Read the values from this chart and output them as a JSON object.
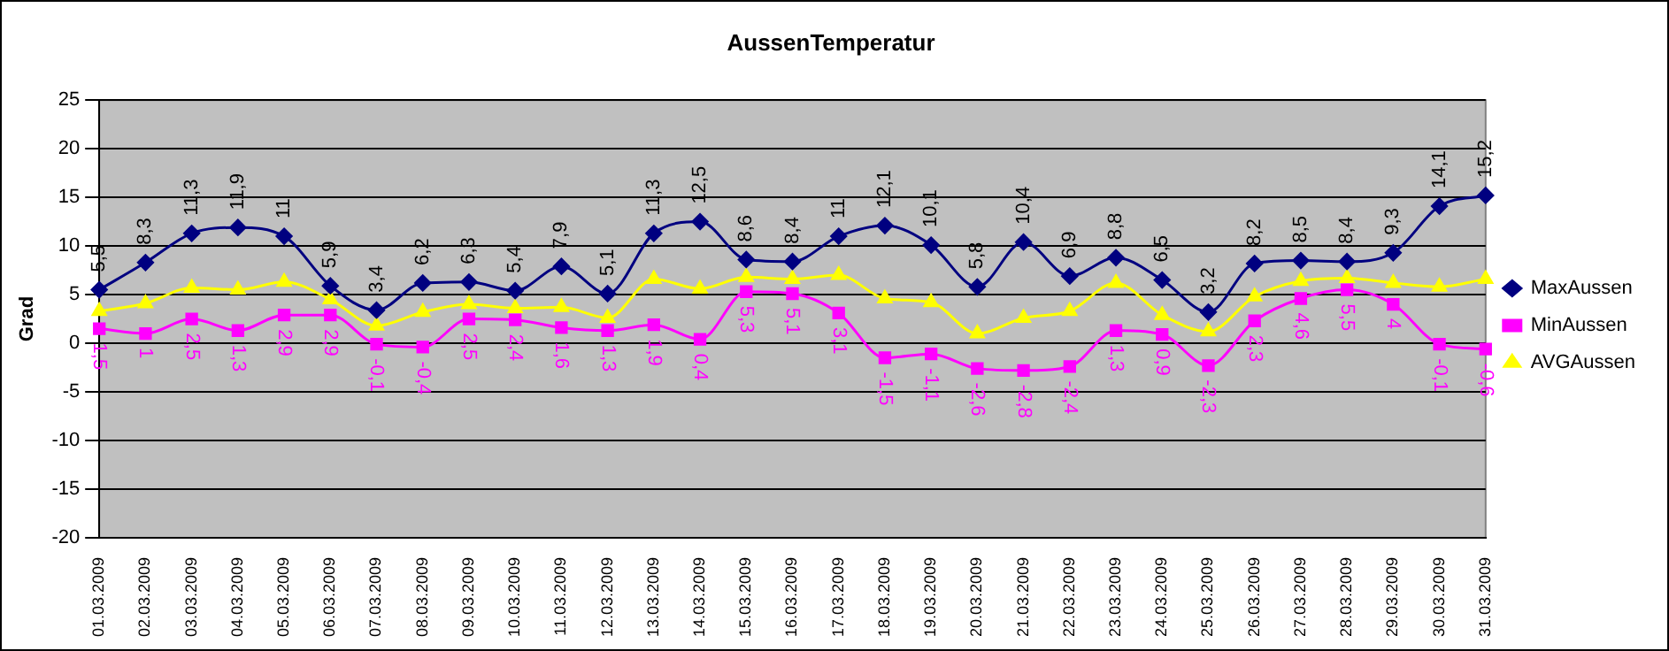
{
  "chart_data": {
    "type": "line",
    "title": "AussenTemperatur",
    "ylabel": "Grad",
    "categories": [
      "01.03.2009",
      "02.03.2009",
      "03.03.2009",
      "04.03.2009",
      "05.03.2009",
      "06.03.2009",
      "07.03.2009",
      "08.03.2009",
      "09.03.2009",
      "10.03.2009",
      "11.03.2009",
      "12.03.2009",
      "13.03.2009",
      "14.03.2009",
      "15.03.2009",
      "16.03.2009",
      "17.03.2009",
      "18.03.2009",
      "19.03.2009",
      "20.03.2009",
      "21.03.2009",
      "22.03.2009",
      "23.03.2009",
      "24.03.2009",
      "25.03.2009",
      "26.03.2009",
      "27.03.2009",
      "28.03.2009",
      "29.03.2009",
      "30.03.2009",
      "31.03.2009"
    ],
    "series": [
      {
        "name": "MaxAussen",
        "color": "#000080",
        "marker": "diamond",
        "values": [
          5.5,
          8.3,
          11.3,
          11.9,
          11,
          5.9,
          3.4,
          6.2,
          6.3,
          5.4,
          7.9,
          5.1,
          11.3,
          12.5,
          8.6,
          8.4,
          11,
          12.1,
          10.1,
          5.8,
          10.4,
          6.9,
          8.8,
          6.5,
          3.2,
          8.2,
          8.5,
          8.4,
          9.3,
          14.1,
          15.2
        ],
        "value_labels": [
          "5,5",
          "8,3",
          "11,3",
          "11,9",
          "11",
          "5,9",
          "3,4",
          "6,2",
          "6,3",
          "5,4",
          "7,9",
          "5,1",
          "11,3",
          "12,5",
          "8,6",
          "8,4",
          "11",
          "12,1",
          "10,1",
          "5,8",
          "10,4",
          "6,9",
          "8,8",
          "6,5",
          "3,2",
          "8,2",
          "8,5",
          "8,4",
          "9,3",
          "14,1",
          "15,2"
        ]
      },
      {
        "name": "MinAussen",
        "color": "#ff00ff",
        "marker": "square",
        "values": [
          1.5,
          1,
          2.5,
          1.3,
          2.9,
          2.9,
          -0.1,
          -0.4,
          2.5,
          2.4,
          1.6,
          1.3,
          1.9,
          0.4,
          5.3,
          5.1,
          3.1,
          -1.5,
          -1.1,
          -2.6,
          -2.8,
          -2.4,
          1.3,
          0.9,
          -2.3,
          2.3,
          4.6,
          5.5,
          4,
          -0.1,
          -0.6
        ],
        "value_labels": [
          "1,5",
          "1",
          "2,5",
          "1,3",
          "2,9",
          "2,9",
          "-0,1",
          "-0,4",
          "2,5",
          "2,4",
          "1,6",
          "1,3",
          "1,9",
          "0,4",
          "5,3",
          "5,1",
          "3,1",
          "-1,5",
          "-1,1",
          "-2,6",
          "-2,8",
          "-2,4",
          "1,3",
          "0,9",
          "-2,3",
          "2,3",
          "4,6",
          "5,5",
          "4",
          "-0,1",
          "-0,6"
        ]
      },
      {
        "name": "AVGAussen",
        "color": "#ffff00",
        "marker": "triangle",
        "values": [
          3.3,
          4.1,
          5.7,
          5.5,
          6.3,
          4.5,
          1.8,
          3.2,
          4,
          3.6,
          3.7,
          2.6,
          6.6,
          5.6,
          6.8,
          6.6,
          7,
          4.6,
          4.2,
          1,
          2.6,
          3.3,
          6.2,
          2.9,
          1.2,
          4.8,
          6.4,
          6.7,
          6.2,
          5.8,
          6.6
        ]
      }
    ],
    "ylim": [
      -20,
      25
    ],
    "yticks": [
      -20,
      -15,
      -10,
      -5,
      0,
      5,
      10,
      15,
      20,
      25
    ],
    "grid": "y",
    "legend": "right",
    "line_style": "solid"
  }
}
